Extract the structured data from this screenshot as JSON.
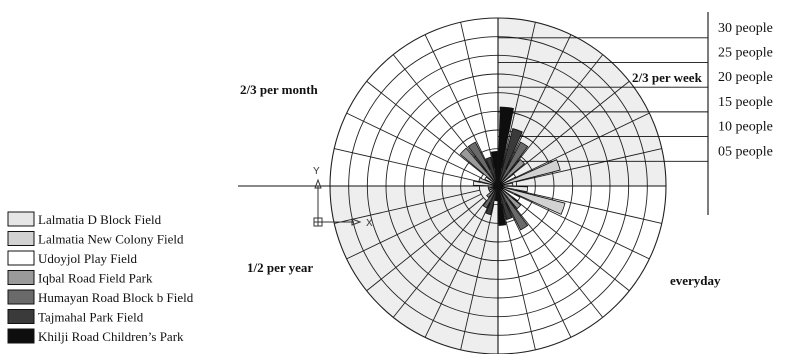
{
  "chart_data": {
    "type": "polar-bar",
    "title": "",
    "quadrants": [
      {
        "key": "everyday",
        "label": "everyday",
        "fill": "#ffffff"
      },
      {
        "key": "week",
        "label": "2/3 per week",
        "fill": "#eeeeee"
      },
      {
        "key": "month",
        "label": "2/3 per month",
        "fill": "#ffffff"
      },
      {
        "key": "year",
        "label": "1/2 per year",
        "fill": "#eeeeee"
      }
    ],
    "radial_axis": {
      "unit": "people",
      "ticks": [
        5,
        10,
        15,
        20,
        25,
        30
      ],
      "tick_labels": [
        "05 people",
        "10 people",
        "15 people",
        "20 people",
        "25 people",
        "30 people"
      ],
      "max": 34
    },
    "series": [
      {
        "name": "Lalmatia D Block Field",
        "color": "#e6e6e6"
      },
      {
        "name": "Lalmatia New Colony Field",
        "color": "#d2d2d2"
      },
      {
        "name": "Udoyjol Play Field",
        "color": "#ffffff"
      },
      {
        "name": "Iqbal Road Field Park",
        "color": "#9a9a9a"
      },
      {
        "name": "Humayan Road Block b Field",
        "color": "#6a6a6a"
      },
      {
        "name": "Tajmahal Park Field",
        "color": "#3a3a3a"
      },
      {
        "name": "Khilji Road Children’s Park",
        "color": "#0e0e0e"
      }
    ],
    "bars": [
      {
        "quadrant": "week",
        "series": "Khilji Road Children’s Park",
        "value": 16
      },
      {
        "quadrant": "week",
        "series": "Tajmahal Park Field",
        "value": 12
      },
      {
        "quadrant": "week",
        "series": "Humayan Road Block b Field",
        "value": 10
      },
      {
        "quadrant": "week",
        "series": "Iqbal Road Field Park",
        "value": 7
      },
      {
        "quadrant": "week",
        "series": "Udoyjol Play Field",
        "value": 4
      },
      {
        "quadrant": "week",
        "series": "Lalmatia New Colony Field",
        "value": 13
      },
      {
        "quadrant": "week",
        "series": "Lalmatia D Block Field",
        "value": 3
      },
      {
        "quadrant": "month",
        "series": "Lalmatia D Block Field",
        "value": 5
      },
      {
        "quadrant": "month",
        "series": "Lalmatia New Colony Field",
        "value": 4
      },
      {
        "quadrant": "month",
        "series": "Udoyjol Play Field",
        "value": 3
      },
      {
        "quadrant": "month",
        "series": "Iqbal Road Field Park",
        "value": 10
      },
      {
        "quadrant": "month",
        "series": "Humayan Road Block b Field",
        "value": 10
      },
      {
        "quadrant": "month",
        "series": "Tajmahal Park Field",
        "value": 6
      },
      {
        "quadrant": "month",
        "series": "Khilji Road Children’s Park",
        "value": 7
      },
      {
        "quadrant": "year",
        "series": "Khilji Road Children’s Park",
        "value": 3
      },
      {
        "quadrant": "year",
        "series": "Tajmahal Park Field",
        "value": 6
      },
      {
        "quadrant": "year",
        "series": "Humayan Road Block b Field",
        "value": 5
      },
      {
        "quadrant": "year",
        "series": "Iqbal Road Field Park",
        "value": 3
      },
      {
        "quadrant": "year",
        "series": "Udoyjol Play Field",
        "value": 2
      },
      {
        "quadrant": "year",
        "series": "Lalmatia New Colony Field",
        "value": 2
      },
      {
        "quadrant": "year",
        "series": "Lalmatia D Block Field",
        "value": 2
      },
      {
        "quadrant": "everyday",
        "series": "Lalmatia D Block Field",
        "value": 6
      },
      {
        "quadrant": "everyday",
        "series": "Lalmatia New Colony Field",
        "value": 14
      },
      {
        "quadrant": "everyday",
        "series": "Udoyjol Play Field",
        "value": 5
      },
      {
        "quadrant": "everyday",
        "series": "Iqbal Road Field Park",
        "value": 6
      },
      {
        "quadrant": "everyday",
        "series": "Humayan Road Block b Field",
        "value": 10
      },
      {
        "quadrant": "everyday",
        "series": "Tajmahal Park Field",
        "value": 7
      },
      {
        "quadrant": "everyday",
        "series": "Khilji Road Children’s Park",
        "value": 8
      }
    ],
    "axis_glyph": {
      "y_label": "Y",
      "x_label": "X"
    },
    "legend": "left",
    "grid": true
  }
}
